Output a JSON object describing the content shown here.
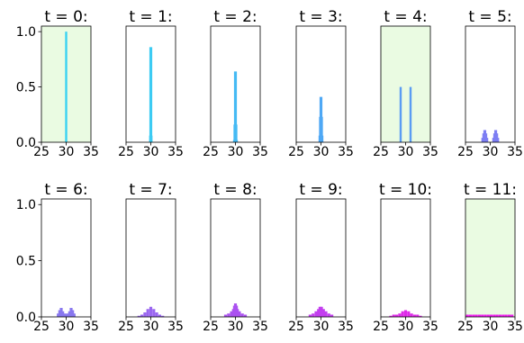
{
  "colors": {
    "highlight_bg": "#eafbe2",
    "frame": "#000000"
  },
  "chart_data": {
    "type": "bar",
    "layout": "grid 2x6 small multiples",
    "shared_axes": {
      "xlim": [
        25,
        35
      ],
      "ylim": [
        0,
        1.05
      ],
      "xticks": [
        "25",
        "30",
        "35"
      ],
      "yticks": [
        "0.0",
        "0.5",
        "1.0"
      ]
    },
    "panels": [
      {
        "title": "t = 0:",
        "highlight": true,
        "color": "#3ad2f2",
        "bars": [
          {
            "x": 30,
            "y": 1.0
          }
        ]
      },
      {
        "title": "t = 1:",
        "highlight": false,
        "color": "#3ccbf3",
        "bars": [
          {
            "x": 30,
            "y": 0.86
          },
          {
            "x": 29.95,
            "y": 0.06
          },
          {
            "x": 30.05,
            "y": 0.06
          }
        ]
      },
      {
        "title": "t = 2:",
        "highlight": false,
        "color": "#45baf4",
        "bars": [
          {
            "x": 30,
            "y": 0.64
          },
          {
            "x": 29.9,
            "y": 0.16
          },
          {
            "x": 30.1,
            "y": 0.16
          },
          {
            "x": 29.8,
            "y": 0.02
          },
          {
            "x": 30.2,
            "y": 0.02
          }
        ]
      },
      {
        "title": "t = 3:",
        "highlight": false,
        "color": "#4ea8f5",
        "bars": [
          {
            "x": 30,
            "y": 0.41
          },
          {
            "x": 29.9,
            "y": 0.23
          },
          {
            "x": 30.1,
            "y": 0.23
          },
          {
            "x": 29.8,
            "y": 0.06
          },
          {
            "x": 30.2,
            "y": 0.06
          }
        ]
      },
      {
        "title": "t = 4:",
        "highlight": true,
        "color": "#5b9cf3",
        "bars": [
          {
            "x": 29,
            "y": 0.5
          },
          {
            "x": 31,
            "y": 0.5
          }
        ]
      },
      {
        "title": "t = 5:",
        "highlight": false,
        "color": "#7d7ef3",
        "bars": [
          {
            "x": 28.5,
            "y": 0.04
          },
          {
            "x": 28.7,
            "y": 0.08
          },
          {
            "x": 28.9,
            "y": 0.11
          },
          {
            "x": 29.1,
            "y": 0.08
          },
          {
            "x": 29.3,
            "y": 0.04
          },
          {
            "x": 30.7,
            "y": 0.04
          },
          {
            "x": 30.9,
            "y": 0.08
          },
          {
            "x": 31.1,
            "y": 0.11
          },
          {
            "x": 31.3,
            "y": 0.08
          },
          {
            "x": 31.5,
            "y": 0.04
          }
        ]
      },
      {
        "title": "t = 6:",
        "highlight": false,
        "color": "#8877ef",
        "bars": [
          {
            "x": 28.4,
            "y": 0.03
          },
          {
            "x": 28.7,
            "y": 0.06
          },
          {
            "x": 29.0,
            "y": 0.08
          },
          {
            "x": 29.3,
            "y": 0.05
          },
          {
            "x": 29.7,
            "y": 0.03
          },
          {
            "x": 30.0,
            "y": 0.02
          },
          {
            "x": 30.3,
            "y": 0.03
          },
          {
            "x": 30.7,
            "y": 0.05
          },
          {
            "x": 31.0,
            "y": 0.08
          },
          {
            "x": 31.3,
            "y": 0.06
          },
          {
            "x": 31.6,
            "y": 0.03
          }
        ]
      },
      {
        "title": "t = 7:",
        "highlight": false,
        "color": "#9a66f0",
        "bars": [
          {
            "x": 27.6,
            "y": 0.01
          },
          {
            "x": 28.2,
            "y": 0.02
          },
          {
            "x": 28.8,
            "y": 0.04
          },
          {
            "x": 29.4,
            "y": 0.07
          },
          {
            "x": 30.0,
            "y": 0.09
          },
          {
            "x": 30.6,
            "y": 0.07
          },
          {
            "x": 31.2,
            "y": 0.04
          },
          {
            "x": 31.8,
            "y": 0.02
          },
          {
            "x": 32.4,
            "y": 0.01
          }
        ]
      },
      {
        "title": "t = 8:",
        "highlight": false,
        "color": "#ab52f0",
        "bars": [
          {
            "x": 28.0,
            "y": 0.02
          },
          {
            "x": 28.6,
            "y": 0.03
          },
          {
            "x": 29.2,
            "y": 0.05
          },
          {
            "x": 29.6,
            "y": 0.07
          },
          {
            "x": 29.8,
            "y": 0.1
          },
          {
            "x": 30.0,
            "y": 0.12
          },
          {
            "x": 30.2,
            "y": 0.1
          },
          {
            "x": 30.4,
            "y": 0.07
          },
          {
            "x": 30.8,
            "y": 0.05
          },
          {
            "x": 31.4,
            "y": 0.03
          },
          {
            "x": 32.0,
            "y": 0.02
          }
        ]
      },
      {
        "title": "t = 9:",
        "highlight": false,
        "color": "#c33fef",
        "bars": [
          {
            "x": 27.8,
            "y": 0.02
          },
          {
            "x": 28.4,
            "y": 0.03
          },
          {
            "x": 29.0,
            "y": 0.05
          },
          {
            "x": 29.5,
            "y": 0.07
          },
          {
            "x": 29.8,
            "y": 0.09
          },
          {
            "x": 30.1,
            "y": 0.09
          },
          {
            "x": 30.5,
            "y": 0.07
          },
          {
            "x": 31.0,
            "y": 0.05
          },
          {
            "x": 31.6,
            "y": 0.03
          },
          {
            "x": 32.2,
            "y": 0.02
          }
        ]
      },
      {
        "title": "t = 10:",
        "highlight": false,
        "color": "#de2ae9",
        "bars": [
          {
            "x": 27.0,
            "y": 0.01
          },
          {
            "x": 27.6,
            "y": 0.02
          },
          {
            "x": 28.2,
            "y": 0.02
          },
          {
            "x": 28.8,
            "y": 0.03
          },
          {
            "x": 29.4,
            "y": 0.05
          },
          {
            "x": 30.0,
            "y": 0.06
          },
          {
            "x": 30.6,
            "y": 0.05
          },
          {
            "x": 31.2,
            "y": 0.03
          },
          {
            "x": 31.8,
            "y": 0.02
          },
          {
            "x": 32.4,
            "y": 0.02
          },
          {
            "x": 33.0,
            "y": 0.01
          }
        ]
      },
      {
        "title": "t = 11:",
        "highlight": true,
        "color": "#f01bf0",
        "bars": [
          {
            "x": 25.4,
            "y": 0.02
          },
          {
            "x": 26.0,
            "y": 0.02
          },
          {
            "x": 26.6,
            "y": 0.02
          },
          {
            "x": 27.2,
            "y": 0.02
          },
          {
            "x": 27.8,
            "y": 0.02
          },
          {
            "x": 28.4,
            "y": 0.02
          },
          {
            "x": 29.0,
            "y": 0.02
          },
          {
            "x": 29.6,
            "y": 0.02
          },
          {
            "x": 30.2,
            "y": 0.02
          },
          {
            "x": 30.8,
            "y": 0.02
          },
          {
            "x": 31.4,
            "y": 0.02
          },
          {
            "x": 32.0,
            "y": 0.02
          },
          {
            "x": 32.6,
            "y": 0.02
          },
          {
            "x": 33.2,
            "y": 0.02
          },
          {
            "x": 33.8,
            "y": 0.02
          },
          {
            "x": 34.4,
            "y": 0.02
          }
        ]
      }
    ]
  }
}
